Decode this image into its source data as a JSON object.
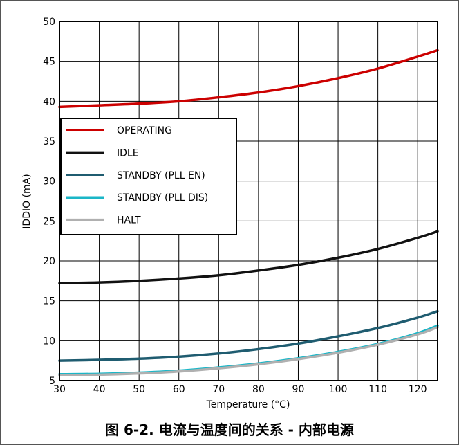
{
  "caption": "图 6-2. 电流与温度间的关系 - 内部电源",
  "chart_data": {
    "type": "line",
    "xlabel": "Temperature (°C)",
    "ylabel": "IDDIO (mA)",
    "xlim": [
      30,
      125
    ],
    "ylim": [
      5,
      50
    ],
    "x_ticks": [
      30,
      40,
      50,
      60,
      70,
      80,
      90,
      100,
      110,
      120
    ],
    "y_ticks": [
      5,
      10,
      15,
      20,
      25,
      30,
      35,
      40,
      45,
      50
    ],
    "grid": true,
    "legend_position": "middle-left",
    "x": [
      30,
      40,
      50,
      60,
      70,
      80,
      90,
      100,
      110,
      120,
      125
    ],
    "series": [
      {
        "name": "OPERATING",
        "color": "#cc0000",
        "values": [
          39.3,
          39.5,
          39.7,
          40.0,
          40.5,
          41.1,
          41.9,
          42.9,
          44.1,
          45.6,
          46.4
        ]
      },
      {
        "name": "IDLE",
        "color": "#111111",
        "values": [
          17.2,
          17.3,
          17.5,
          17.8,
          18.2,
          18.8,
          19.5,
          20.4,
          21.5,
          22.9,
          23.7
        ]
      },
      {
        "name": "STANDBY (PLL EN)",
        "color": "#1f5c70",
        "values": [
          7.5,
          7.6,
          7.75,
          8.0,
          8.4,
          8.95,
          9.65,
          10.55,
          11.6,
          12.9,
          13.7
        ]
      },
      {
        "name": "STANDBY (PLL DIS)",
        "color": "#1ab6c7",
        "values": [
          5.8,
          5.85,
          6.0,
          6.25,
          6.65,
          7.15,
          7.8,
          8.6,
          9.6,
          10.95,
          11.9
        ]
      },
      {
        "name": "HALT",
        "color": "#b0b0b0",
        "values": [
          5.7,
          5.75,
          5.9,
          6.15,
          6.55,
          7.05,
          7.7,
          8.5,
          9.5,
          10.8,
          11.7
        ]
      }
    ]
  }
}
